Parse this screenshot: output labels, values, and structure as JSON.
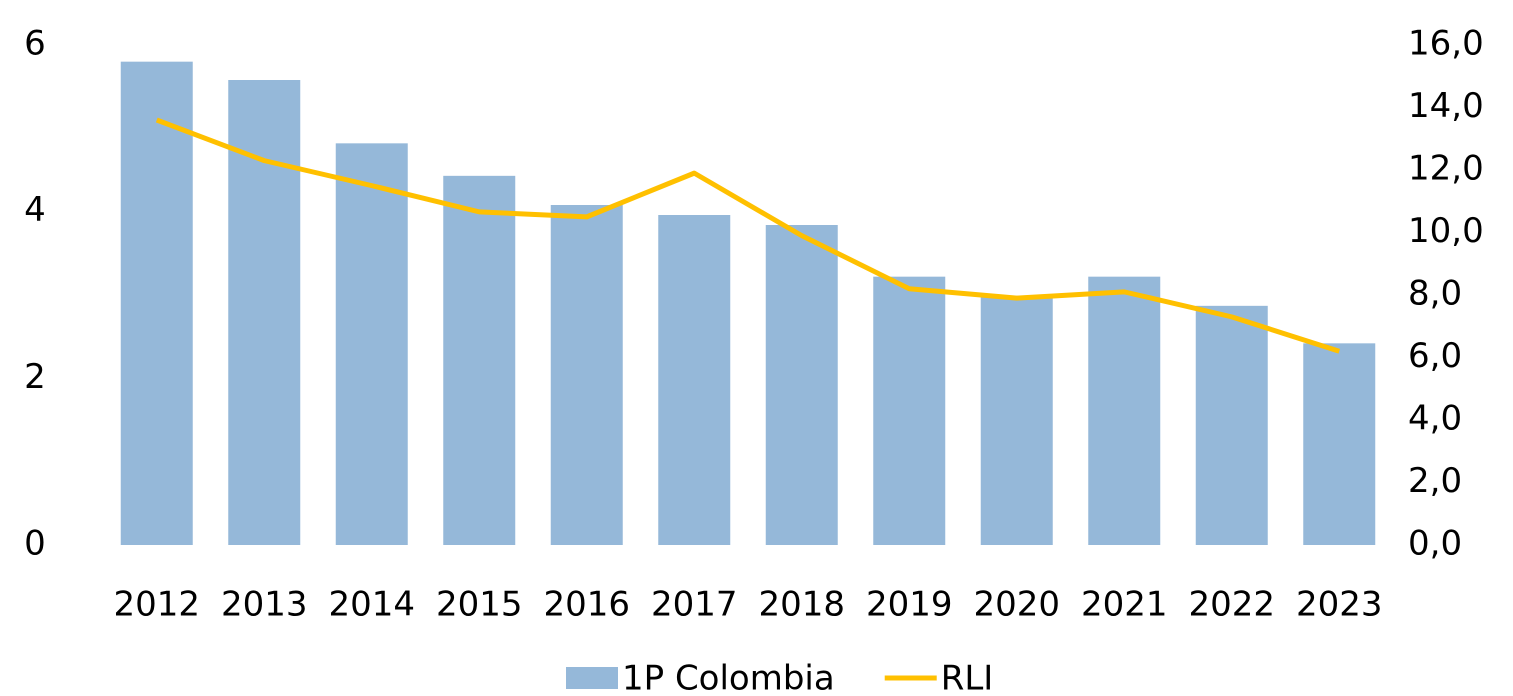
{
  "chart_data": {
    "type": "bar_line",
    "categories": [
      "2012",
      "2013",
      "2014",
      "2015",
      "2016",
      "2017",
      "2018",
      "2019",
      "2020",
      "2021",
      "2022",
      "2023"
    ],
    "series": [
      {
        "name": "1P Colombia",
        "type": "bar",
        "color": "#95b8d9",
        "values": [
          5.8,
          5.58,
          4.82,
          4.43,
          4.08,
          3.96,
          3.84,
          3.22,
          2.99,
          3.22,
          2.87,
          2.42
        ]
      },
      {
        "name": "RLI",
        "type": "line",
        "axis": "y2",
        "color": "#ffc000",
        "values": [
          13.6,
          12.3,
          11.5,
          10.66,
          10.5,
          11.9,
          9.9,
          8.2,
          7.9,
          8.1,
          7.3,
          6.2
        ]
      }
    ],
    "ylim": [
      0,
      6
    ],
    "yticks": [
      0,
      2,
      4,
      6
    ],
    "y2lim": [
      0,
      16
    ],
    "y2ticks": [
      {
        "value": 0,
        "label": "0,0"
      },
      {
        "value": 2,
        "label": "2,0"
      },
      {
        "value": 4,
        "label": "4,0"
      },
      {
        "value": 6,
        "label": "6,0"
      },
      {
        "value": 8,
        "label": "8,0"
      },
      {
        "value": 10,
        "label": "10,0"
      },
      {
        "value": 12,
        "label": "12,0"
      },
      {
        "value": 14,
        "label": "14,0"
      },
      {
        "value": 16,
        "label": "16,0"
      }
    ],
    "grid": false,
    "legend": "bottom"
  }
}
